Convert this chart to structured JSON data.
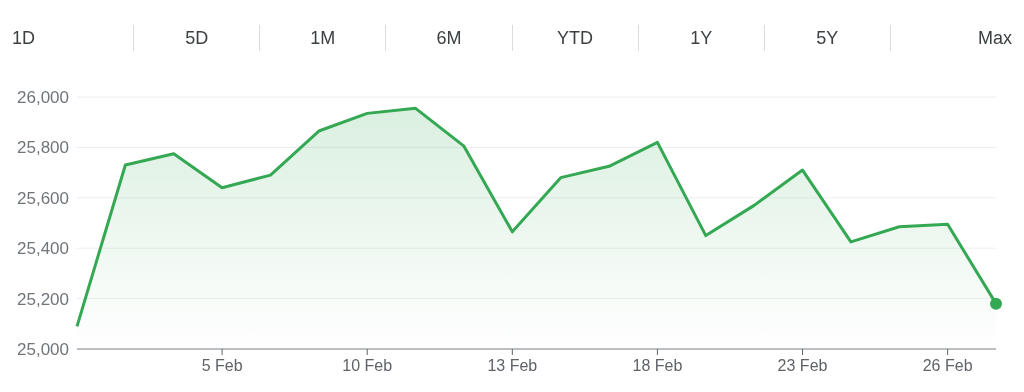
{
  "chart_data": {
    "type": "area",
    "annotations": [
      "1D",
      "5D",
      "1M",
      "6M",
      "YTD",
      "1Y",
      "5Y",
      "Max"
    ],
    "categories": [
      null,
      null,
      null,
      "5 Feb",
      null,
      null,
      "10 Feb",
      null,
      null,
      "13 Feb",
      null,
      null,
      "18 Feb",
      null,
      null,
      "23 Feb",
      null,
      null,
      "26 Feb",
      null
    ],
    "series": [
      {
        "color": "#34a853",
        "values": [
          25090,
          25730,
          25775,
          25640,
          25690,
          25865,
          25935,
          25955,
          25805,
          25465,
          25680,
          25725,
          25820,
          25450,
          25570,
          25710,
          25425,
          25485,
          25495,
          25180
        ]
      }
    ],
    "ylim": [
      25000,
      26000
    ],
    "yticks": [
      {
        "value": 25000,
        "label": "25,000"
      },
      {
        "value": 25200,
        "label": "25,200"
      },
      {
        "value": 25400,
        "label": "25,400"
      },
      {
        "value": 25600,
        "label": "25,600"
      },
      {
        "value": 25800,
        "label": "25,800"
      },
      {
        "value": 26000,
        "label": "26,000"
      }
    ],
    "grid": "y",
    "legend": false
  }
}
